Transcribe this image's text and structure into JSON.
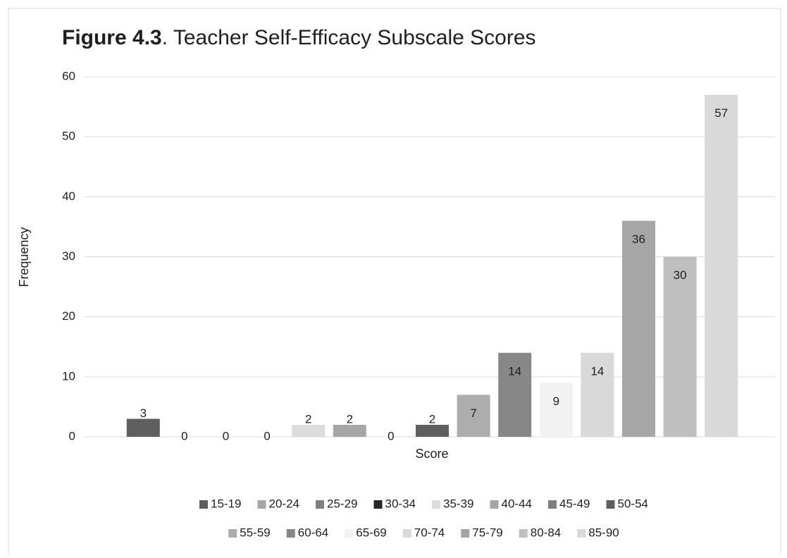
{
  "chart_data": {
    "type": "bar",
    "title_prefix": "Figure 4.3",
    "title": ". Teacher Self-Efficacy Subscale Scores",
    "x_label": "Score",
    "y_label": "Frequency",
    "categories": [
      "15-19",
      "20-24",
      "25-29",
      "30-34",
      "35-39",
      "40-44",
      "45-49",
      "50-54",
      "55-59",
      "60-64",
      "65-69",
      "70-74",
      "75-79",
      "80-84",
      "85-90"
    ],
    "values": [
      3,
      0,
      0,
      0,
      2,
      2,
      0,
      2,
      7,
      14,
      9,
      14,
      36,
      30,
      57
    ],
    "colors": [
      "#5f5f5f",
      "#a6a6a6",
      "#7f7f7f",
      "#262626",
      "#dcdcdc",
      "#a6a6a6",
      "#7f7f7f",
      "#5f5f5f",
      "#adadad",
      "#878787",
      "#f2f2f2",
      "#d9d9d9",
      "#a6a6a6",
      "#bfbfbf",
      "#d9d9d9"
    ],
    "ylim": [
      0,
      60
    ],
    "yticks": [
      0,
      10,
      20,
      30,
      40,
      50,
      60
    ],
    "grid": true,
    "legend": "bottom"
  }
}
